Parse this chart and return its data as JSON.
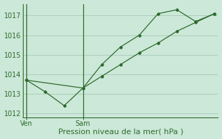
{
  "line1_x": [
    0,
    1,
    2,
    3,
    4,
    5,
    6,
    7,
    8,
    9,
    10
  ],
  "line1_y": [
    1013.7,
    1013.1,
    1012.4,
    1013.3,
    1014.5,
    1015.4,
    1016.0,
    1017.1,
    1017.3,
    1016.7,
    1017.1
  ],
  "line2_x": [
    0,
    3,
    4,
    5,
    6,
    7,
    8,
    9,
    10
  ],
  "line2_y": [
    1013.7,
    1013.3,
    1013.9,
    1014.5,
    1015.1,
    1015.6,
    1016.2,
    1016.65,
    1017.1
  ],
  "color": "#2d6a2d",
  "bg_color": "#cce8d8",
  "grid_color": "#aacfbb",
  "axis_color": "#2d6a2d",
  "xlabel": "Pression niveau de la mer( hPa )",
  "ylim": [
    1011.8,
    1017.6
  ],
  "yticks": [
    1012,
    1013,
    1014,
    1015,
    1016,
    1017
  ],
  "xlim": [
    -0.2,
    10.2
  ],
  "ven_x": 0,
  "sam_x": 3,
  "tick_fontsize": 7,
  "xlabel_fontsize": 8
}
